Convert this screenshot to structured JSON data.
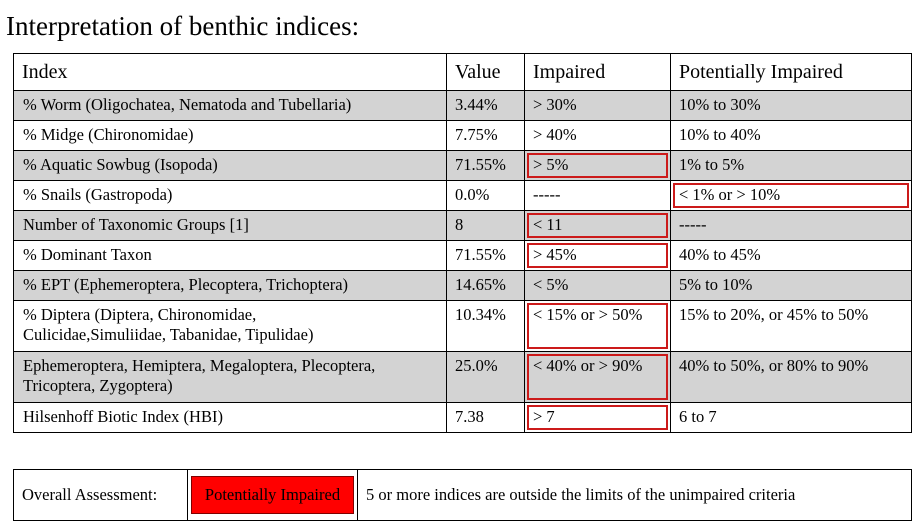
{
  "title": "Interpretation of benthic indices:",
  "table": {
    "headers": [
      "Index",
      "Value",
      "Impaired",
      "Potentially Impaired"
    ],
    "rows": [
      {
        "index": "% Worm (Oligochatea, Nematoda and Tubellaria)",
        "value": "3.44%",
        "impaired": "> 30%",
        "potentially": "10% to 30%"
      },
      {
        "index": "% Midge (Chironomidae)",
        "value": "7.75%",
        "impaired": "> 40%",
        "potentially": "10% to 40%"
      },
      {
        "index": "% Aquatic Sowbug (Isopoda)",
        "value": "71.55%",
        "impaired": "> 5%",
        "potentially": "1% to 5%"
      },
      {
        "index": "% Snails (Gastropoda)",
        "value": "0.0%",
        "impaired": "-----",
        "potentially": "< 1% or > 10%"
      },
      {
        "index": "Number of Taxonomic Groups [1]",
        "value": "8",
        "impaired": "< 11",
        "potentially": "-----"
      },
      {
        "index": "% Dominant Taxon",
        "value": "71.55%",
        "impaired": "> 45%",
        "potentially": "40% to 45%"
      },
      {
        "index": "% EPT (Ephemeroptera, Plecoptera, Trichoptera)",
        "value": "14.65%",
        "impaired": "< 5%",
        "potentially": "5% to 10%"
      },
      {
        "index_line1": "% Diptera (Diptera, Chironomidae,",
        "index_line2": "Culicidae,Simuliidae, Tabanidae, Tipulidae)",
        "value": "10.34%",
        "impaired": "< 15% or > 50%",
        "potentially": "15% to 20%, or 45% to 50%"
      },
      {
        "index_line1": "Ephemeroptera, Hemiptera, Megaloptera, Plecoptera,",
        "index_line2": "Tricoptera, Zygoptera)",
        "value": "25.0%",
        "impaired": "< 40% or > 90%",
        "potentially": "40% to 50%, or 80% to 90%"
      },
      {
        "index": "Hilsenhoff Biotic Index (HBI)",
        "value": "7.38",
        "impaired": "> 7",
        "potentially": "6 to 7"
      }
    ]
  },
  "summary": {
    "label": "Overall Assessment:",
    "status": "Potentially Impaired",
    "note": "5 or more indices are outside the limits of the unimpaired criteria"
  },
  "colors": {
    "row_shade": "#d3d3d3",
    "flag_border": "#cc1a1a",
    "status_fill": "#ff0000"
  }
}
